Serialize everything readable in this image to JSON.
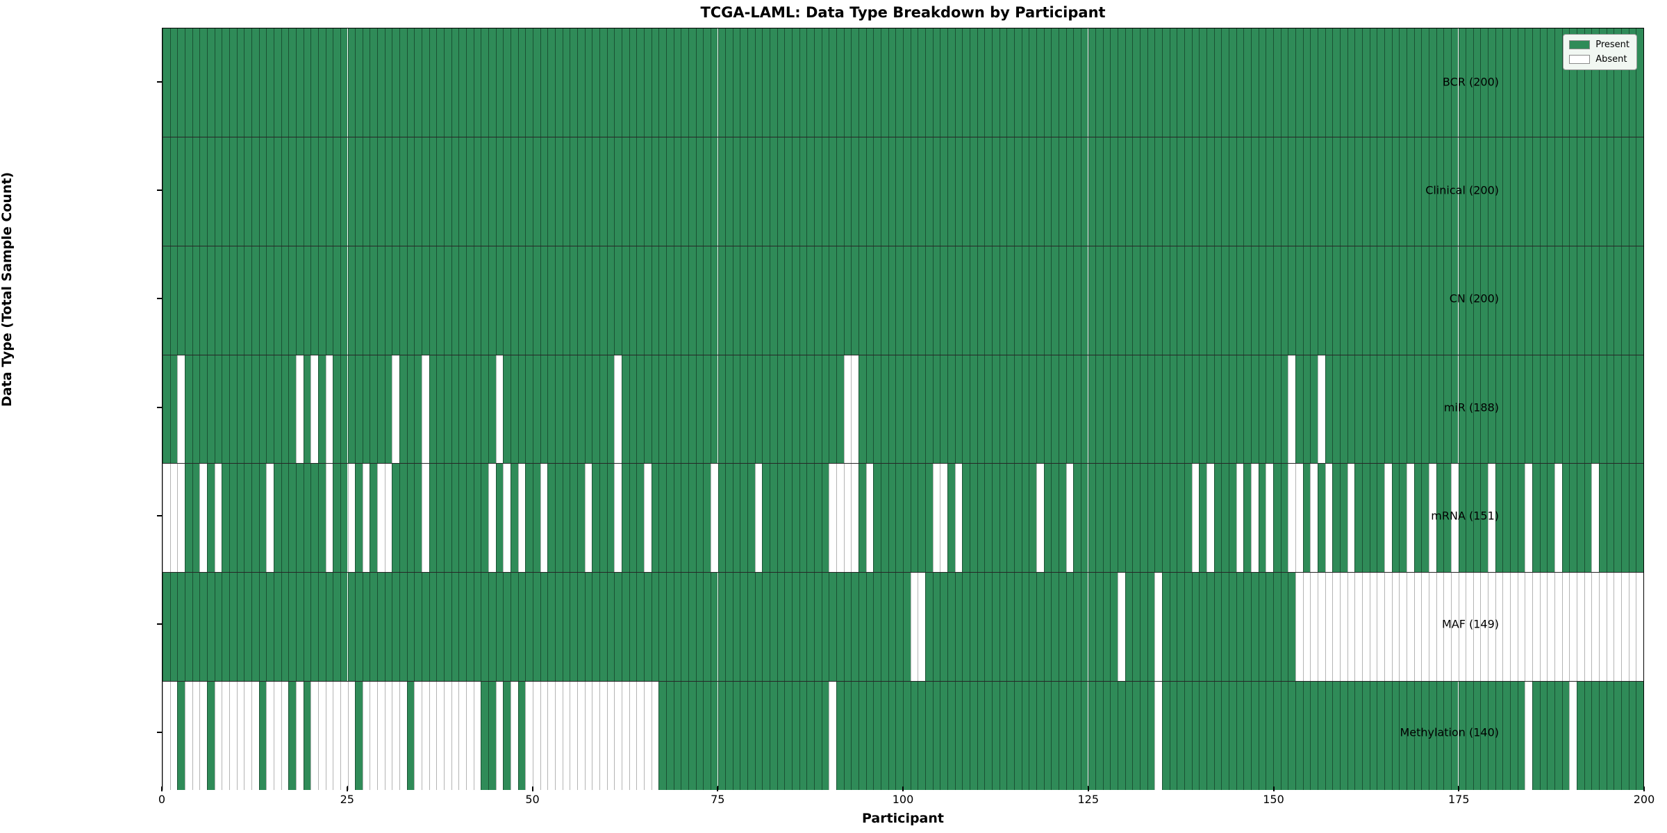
{
  "title": "TCGA-LAML: Data Type Breakdown by Participant",
  "xlabel": "Participant",
  "ylabel": "Data Type (Total Sample Count)",
  "n_participants": 200,
  "x_ticks": [
    0,
    25,
    50,
    75,
    100,
    125,
    150,
    175,
    200
  ],
  "colors": {
    "present": "#2f8b58",
    "absent": "#ffffff",
    "legend_background": "#f1f7f2"
  },
  "legend": {
    "position": "upper right",
    "entries": [
      {
        "label": "Present",
        "color": "#2f8b58"
      },
      {
        "label": "Absent",
        "color": "#ffffff"
      }
    ]
  },
  "chart_data": {
    "type": "heatmap",
    "title": "TCGA-LAML: Data Type Breakdown by Participant",
    "xlabel": "Participant",
    "ylabel": "Data Type (Total Sample Count)",
    "x_range": [
      0,
      200
    ],
    "grid": false,
    "legend_position": "upper right",
    "value_encoding": {
      "present": 1,
      "absent": 0
    },
    "rows": [
      {
        "label": "BCR (200)",
        "present_count": 200,
        "absent_cols": []
      },
      {
        "label": "Clinical (200)",
        "present_count": 200,
        "absent_cols": []
      },
      {
        "label": "CN (200)",
        "present_count": 200,
        "absent_cols": []
      },
      {
        "label": "miR (188)",
        "present_count": 188,
        "absent_cols": [
          2,
          18,
          20,
          22,
          31,
          35,
          45,
          61,
          92,
          93,
          152,
          156
        ]
      },
      {
        "label": "mRNA (151)",
        "present_count": 151,
        "absent_cols": [
          0,
          1,
          2,
          5,
          7,
          14,
          22,
          25,
          27,
          29,
          30,
          35,
          44,
          46,
          48,
          51,
          57,
          61,
          65,
          74,
          80,
          90,
          91,
          92,
          93,
          95,
          104,
          105,
          107,
          118,
          122,
          139,
          141,
          145,
          147,
          149,
          152,
          153,
          155,
          157,
          160,
          165,
          168,
          171,
          174,
          179,
          184,
          188,
          193
        ]
      },
      {
        "label": "MAF (149)",
        "present_count": 149,
        "absent_cols": [
          101,
          102,
          129,
          134,
          153,
          154,
          155,
          156,
          157,
          158,
          159,
          160,
          161,
          162,
          163,
          164,
          165,
          166,
          167,
          168,
          169,
          170,
          171,
          172,
          173,
          174,
          175,
          176,
          177,
          178,
          179,
          180,
          181,
          182,
          183,
          184,
          185,
          186,
          187,
          188,
          189,
          190,
          191,
          192,
          193,
          194,
          195,
          196,
          197,
          198,
          199
        ]
      },
      {
        "label": "Methylation (140)",
        "present_count": 140,
        "absent_cols": [
          0,
          1,
          3,
          4,
          5,
          7,
          8,
          9,
          10,
          11,
          12,
          14,
          15,
          16,
          18,
          20,
          21,
          22,
          23,
          24,
          25,
          27,
          28,
          29,
          30,
          31,
          32,
          34,
          35,
          36,
          37,
          38,
          39,
          40,
          41,
          42,
          45,
          47,
          49,
          50,
          51,
          52,
          53,
          54,
          55,
          56,
          57,
          58,
          59,
          60,
          61,
          62,
          63,
          64,
          65,
          66,
          90,
          134,
          184,
          190
        ]
      }
    ]
  }
}
